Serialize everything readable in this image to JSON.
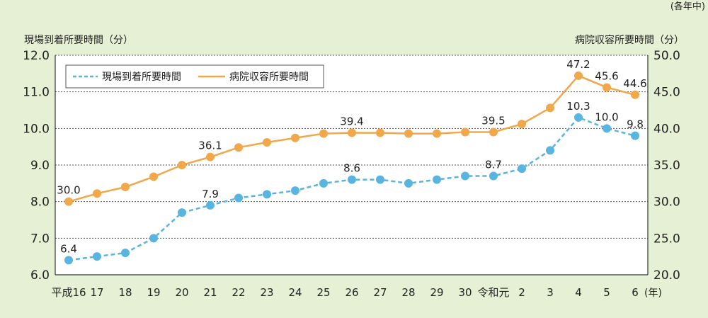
{
  "chart_data": {
    "type": "line",
    "unit_note": "(各年中)",
    "ylabel_left": "現場到着所要時間（分）",
    "ylabel_right": "病院収容所要時間（分）",
    "x_unit": "(年)",
    "categories": [
      "平成16",
      "17",
      "18",
      "19",
      "20",
      "21",
      "22",
      "23",
      "24",
      "25",
      "26",
      "27",
      "28",
      "29",
      "30",
      "令和元",
      "2",
      "3",
      "4",
      "5",
      "6"
    ],
    "ylim_left": [
      6.0,
      12.0
    ],
    "yticks_left": [
      "6.0",
      "7.0",
      "8.0",
      "9.0",
      "10.0",
      "11.0",
      "12.0"
    ],
    "ylim_right": [
      20.0,
      50.0
    ],
    "yticks_right": [
      "20.0",
      "25.0",
      "30.0",
      "35.0",
      "40.0",
      "45.0",
      "50.0"
    ],
    "grid": true,
    "legend": "top-left",
    "series": [
      {
        "name": "現場到着所要時間",
        "axis": "left",
        "style": "dashed",
        "color": "#5ab4e0",
        "values": [
          6.4,
          6.5,
          6.6,
          7.0,
          7.7,
          7.9,
          8.1,
          8.2,
          8.3,
          8.5,
          8.6,
          8.6,
          8.5,
          8.6,
          8.7,
          8.7,
          8.9,
          9.4,
          10.3,
          10.0,
          9.8
        ],
        "labels": {
          "0": "6.4",
          "5": "7.9",
          "10": "8.6",
          "15": "8.7",
          "18": "10.3",
          "19": "10.0",
          "20": "9.8"
        }
      },
      {
        "name": "病院収容所要時間",
        "axis": "right",
        "style": "solid",
        "color": "#f0a84a",
        "values": [
          30.0,
          31.1,
          32.0,
          33.4,
          35.0,
          36.1,
          37.4,
          38.1,
          38.7,
          39.3,
          39.4,
          39.4,
          39.3,
          39.3,
          39.5,
          39.5,
          40.6,
          42.8,
          47.2,
          45.6,
          44.6
        ],
        "labels": {
          "0": "30.0",
          "5": "36.1",
          "10": "39.4",
          "15": "39.5",
          "18": "47.2",
          "19": "45.6",
          "20": "44.6"
        }
      }
    ]
  }
}
